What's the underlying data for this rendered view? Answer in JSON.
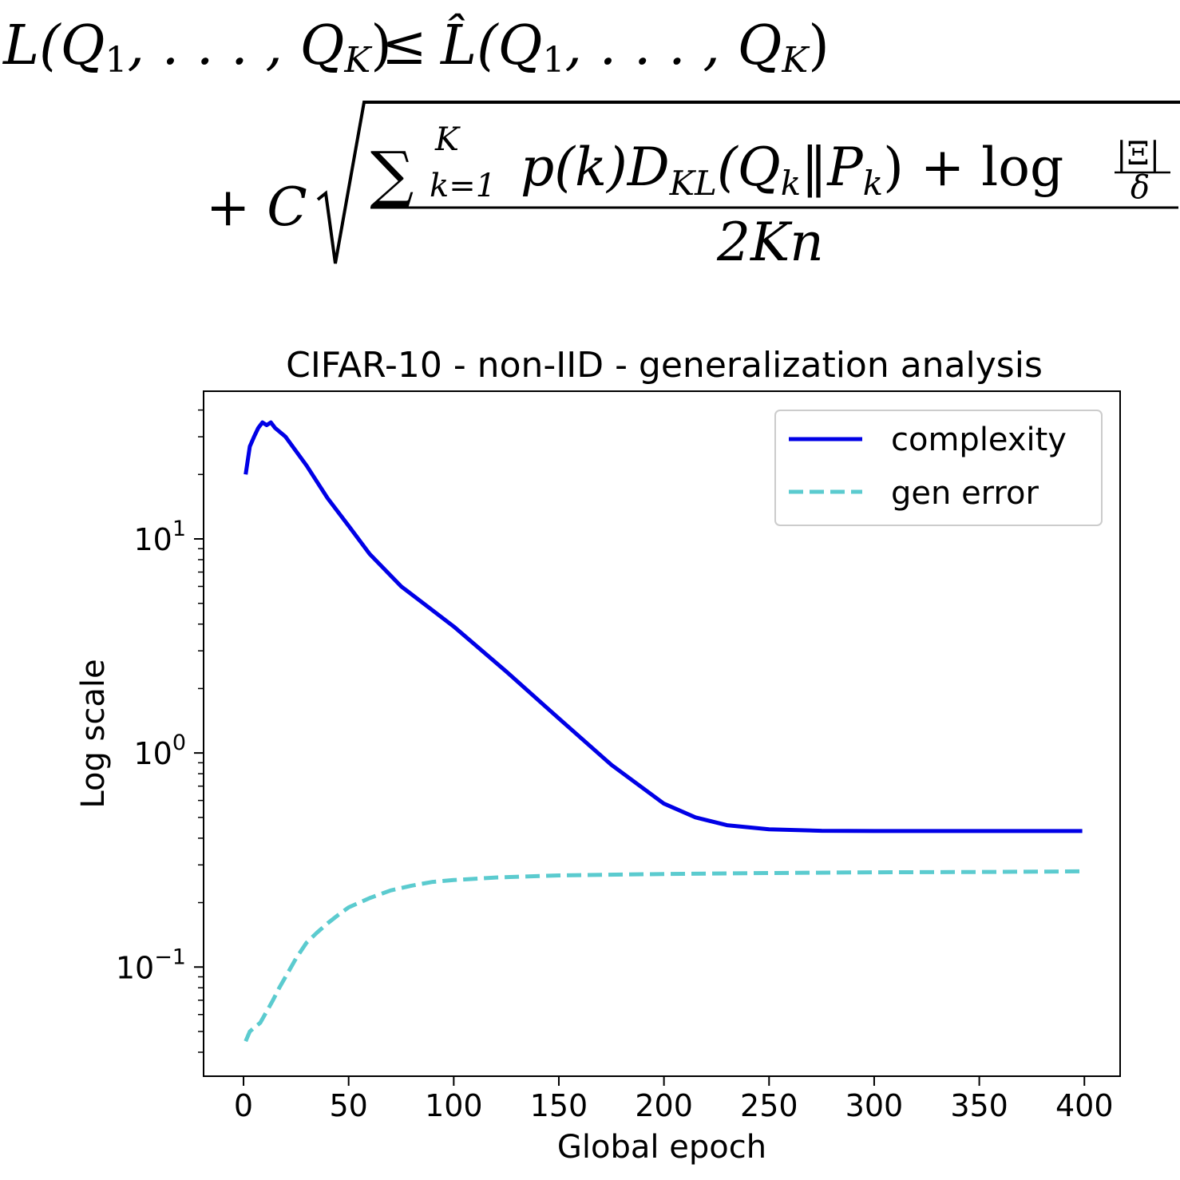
{
  "formula": {
    "line1_lhs": "L(Q",
    "line1_rhs_hat": "L̂(Q",
    "sub_1": "1",
    "sub_K": "K",
    "ellipsis": ", . . . , Q",
    "leq": "≤",
    "close_paren": ")",
    "plus_C": "+ C",
    "sum": "∑",
    "sum_upper": "K",
    "sum_lower": "k=1",
    "p_of_k": "p(k)D",
    "KL_sub": "KL",
    "Qk_open": "(Q",
    "k_sub": "k",
    "norm": "‖P",
    "close_plus_log": ") + log",
    "frac_num": "|Ξ|",
    "frac_den": "δ",
    "denominator": "2Kn"
  },
  "chart_data": {
    "type": "line",
    "title": "CIFAR-10 - non-IID - generalization analysis",
    "xlabel": "Global epoch",
    "ylabel": "Log scale",
    "xlim": [
      -19,
      417
    ],
    "ylim_log10": [
      -1.51,
      1.69
    ],
    "y_scale": "log",
    "x_ticks": [
      0,
      50,
      100,
      150,
      200,
      250,
      300,
      350,
      400
    ],
    "x_tick_labels": [
      "0",
      "50",
      "100",
      "150",
      "200",
      "250",
      "300",
      "350",
      "400"
    ],
    "y_ticks": [
      0.1,
      1,
      10
    ],
    "y_tick_labels": [
      {
        "base": "10",
        "exp": "−1"
      },
      {
        "base": "10",
        "exp": "0"
      },
      {
        "base": "10",
        "exp": "1"
      }
    ],
    "grid": false,
    "legend_position": "top-right",
    "series": [
      {
        "name": "complexity",
        "color": "#0000e6",
        "style": "solid",
        "x": [
          1,
          3,
          5,
          7,
          9,
          11,
          13,
          15,
          20,
          30,
          40,
          50,
          60,
          75,
          100,
          125,
          150,
          175,
          200,
          215,
          230,
          250,
          275,
          300,
          350,
          399
        ],
        "y": [
          20,
          27,
          30,
          33,
          35,
          34,
          35,
          33,
          30,
          22,
          15.5,
          11.5,
          8.5,
          6.0,
          3.9,
          2.4,
          1.45,
          0.88,
          0.58,
          0.5,
          0.46,
          0.44,
          0.433,
          0.432,
          0.432,
          0.432
        ]
      },
      {
        "name": "gen error",
        "color": "#5bcbcf",
        "style": "dashed",
        "x": [
          1,
          3,
          5,
          8,
          11,
          14,
          17,
          20,
          25,
          30,
          35,
          40,
          45,
          50,
          60,
          70,
          80,
          90,
          100,
          120,
          150,
          200,
          250,
          300,
          350,
          399
        ],
        "y": [
          0.045,
          0.05,
          0.052,
          0.055,
          0.062,
          0.07,
          0.08,
          0.09,
          0.11,
          0.13,
          0.145,
          0.16,
          0.175,
          0.19,
          0.21,
          0.228,
          0.24,
          0.25,
          0.255,
          0.262,
          0.268,
          0.272,
          0.275,
          0.277,
          0.278,
          0.28
        ]
      }
    ]
  }
}
